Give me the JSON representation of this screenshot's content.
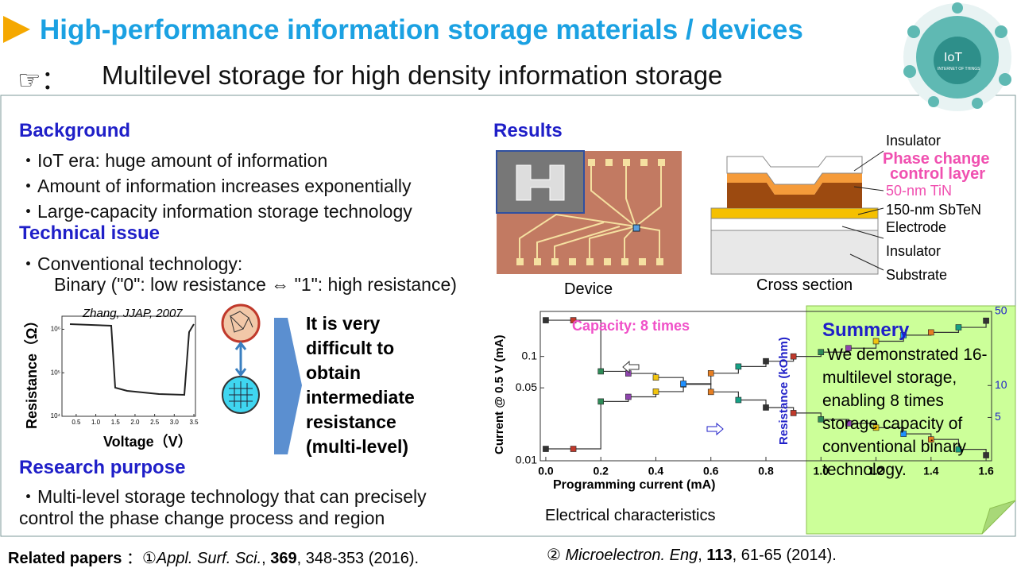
{
  "header": {
    "title": "High-performance information storage materials / devices",
    "subtitle_prefix": "☞：",
    "subtitle": "Multilevel storage for high density information storage"
  },
  "iot_badge": {
    "label": "IoT",
    "sublabel": "INTERNET OF THINGS"
  },
  "background": {
    "heading": "Background",
    "items": [
      "・IoT era: huge amount of information",
      "・Amount of information increases exponentially",
      "・Large-capacity information storage technology"
    ]
  },
  "technical_issue": {
    "heading": "Technical issue",
    "items": [
      "・Conventional technology:",
      "Binary (\"0\": low resistance ⇔ \"1\": high resistance)"
    ]
  },
  "resistance_plot": {
    "citation": "Zhang, JJAP, 2007",
    "ylabel": "Resistance（Ω）",
    "xlabel": "Voltage（V）",
    "xticks": [
      0.5,
      {
        "value": 1,
        "label": "1.0"
      },
      1.5,
      {
        "value": 2,
        "label": "2.0"
      },
      2.5,
      {
        "value": 3,
        "label": "3.0"
      },
      3.5
    ],
    "yticks": [
      {
        "value": 10000,
        "label": "10⁴"
      },
      {
        "value": 100000,
        "label": "10⁵"
      },
      {
        "value": 1000000,
        "label": "10⁶"
      }
    ]
  },
  "callout": "It is very difficult to obtain intermediate resistance (multi-level)",
  "research_purpose": {
    "heading": "Research purpose",
    "lines": [
      "・Multi-level storage technology that can precisely",
      "control the phase change process and region"
    ]
  },
  "results": {
    "heading": "Results",
    "device_caption": "Device"
  },
  "cross_section": {
    "caption": "Cross section",
    "labels": [
      "Insulator",
      "Phase change",
      "control layer",
      "50-nm TiN",
      "150-nm SbTeN",
      "Electrode",
      "Insulator",
      "Substrate"
    ]
  },
  "chart_data": {
    "type": "line",
    "annotation": "Capacity: 8 times",
    "caption": "Electrical characteristics",
    "xlabel": "Programming current (mA)",
    "ylabel": "Current @ 0.5 V (mA)",
    "y2label": "Resistance (kOhm)",
    "x": [
      0,
      0.1,
      0.2,
      0.3,
      0.4,
      0.5,
      0.6,
      0.7,
      0.8,
      0.9,
      1,
      1.1,
      1.2,
      1.3,
      1.4,
      1.5,
      1.6
    ],
    "xlim": [
      -0.02,
      1.62
    ],
    "xticks": [
      {
        "value": 0,
        "label": "0.0"
      },
      0.2,
      0.4,
      0.6,
      0.8,
      {
        "value": 1,
        "label": "1.0"
      },
      1.2,
      1.4,
      1.6
    ],
    "ylog": true,
    "ylim": [
      0.01,
      0.27
    ],
    "yticks": [
      0.01,
      0.05,
      0.1
    ],
    "y2lim": [
      1.95,
      50
    ],
    "y2ticks": [
      5,
      10,
      50
    ],
    "marker_colors": [
      "#333333",
      "#c0392b",
      "#2e8b57",
      "#8e44ad",
      "#f1c40f",
      "#1e90ff",
      "#e67e22",
      "#16a085"
    ],
    "series": [
      {
        "color": "#333333",
        "values": [
          0.013,
          0.013,
          0.037,
          0.041,
          0.046,
          0.054,
          0.069,
          0.08,
          0.09,
          0.1,
          0.11,
          0.12,
          0.14,
          0.16,
          0.17,
          0.19,
          0.22
        ]
      },
      {
        "color": "#333333",
        "axis": "y2",
        "values": [
          41.3,
          41.3,
          13.6,
          13,
          11.9,
          10.4,
          8.7,
          7.3,
          6.2,
          5.5,
          4.8,
          4.4,
          4,
          3.5,
          3.1,
          2.5,
          2.2
        ]
      }
    ]
  },
  "summary": {
    "heading": "Summery",
    "text": "We demonstrated 16-multilevel storage, enabling 8 times storage capacity of conventional binary technology."
  },
  "footer": {
    "label": "Related papers",
    "sep": "：①",
    "paper1_journal": "Appl. Surf. Sci.",
    "paper1_volume": "369",
    "paper1_rest": ", 348-353 (2016).",
    "paper2_mark": "②",
    "paper2_journal": "Microelectron. Eng",
    "paper2_volume": "113",
    "paper2_rest": ", 61-65 (2014)."
  }
}
